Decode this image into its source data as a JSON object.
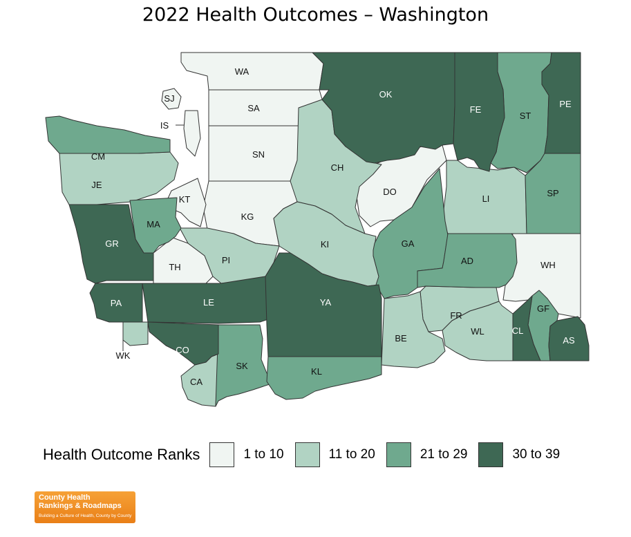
{
  "title": "2022 Health Outcomes – Washington",
  "colors": {
    "bin1": "#f0f5f2",
    "bin2": "#b1d3c3",
    "bin3": "#6fa98e",
    "bin4": "#3e6854",
    "border": "#333333"
  },
  "legend": {
    "title": "Health Outcome Ranks",
    "bins": [
      "1 to 10",
      "11 to 20",
      "21 to 29",
      "30 to 39"
    ]
  },
  "counties": [
    {
      "label": "WA",
      "rank_bin": 1
    },
    {
      "label": "SJ",
      "rank_bin": 1
    },
    {
      "label": "IS",
      "rank_bin": 1
    },
    {
      "label": "SA",
      "rank_bin": 1
    },
    {
      "label": "SN",
      "rank_bin": 1
    },
    {
      "label": "KG",
      "rank_bin": 1
    },
    {
      "label": "KT",
      "rank_bin": 1
    },
    {
      "label": "TH",
      "rank_bin": 1
    },
    {
      "label": "DO",
      "rank_bin": 1
    },
    {
      "label": "WH",
      "rank_bin": 1
    },
    {
      "label": "JE",
      "rank_bin": 2
    },
    {
      "label": "CH",
      "rank_bin": 2
    },
    {
      "label": "PI",
      "rank_bin": 2
    },
    {
      "label": "KI",
      "rank_bin": 2
    },
    {
      "label": "LI",
      "rank_bin": 2
    },
    {
      "label": "FR",
      "rank_bin": 2
    },
    {
      "label": "WL",
      "rank_bin": 2
    },
    {
      "label": "BE",
      "rank_bin": 2
    },
    {
      "label": "CA",
      "rank_bin": 2
    },
    {
      "label": "WK",
      "rank_bin": 2
    },
    {
      "label": "CM",
      "rank_bin": 3
    },
    {
      "label": "MA",
      "rank_bin": 3
    },
    {
      "label": "GA",
      "rank_bin": 3
    },
    {
      "label": "AD",
      "rank_bin": 3
    },
    {
      "label": "ST",
      "rank_bin": 3
    },
    {
      "label": "SP",
      "rank_bin": 3
    },
    {
      "label": "GF",
      "rank_bin": 3
    },
    {
      "label": "SK",
      "rank_bin": 3
    },
    {
      "label": "KL",
      "rank_bin": 3
    },
    {
      "label": "OK",
      "rank_bin": 4
    },
    {
      "label": "FE",
      "rank_bin": 4
    },
    {
      "label": "PE",
      "rank_bin": 4
    },
    {
      "label": "GR",
      "rank_bin": 4
    },
    {
      "label": "PA",
      "rank_bin": 4
    },
    {
      "label": "LE",
      "rank_bin": 4
    },
    {
      "label": "YA",
      "rank_bin": 4
    },
    {
      "label": "CO",
      "rank_bin": 4
    },
    {
      "label": "CL",
      "rank_bin": 4
    },
    {
      "label": "AS",
      "rank_bin": 4
    }
  ],
  "logo": {
    "line1": "County Health",
    "line2": "Rankings & Roadmaps",
    "tagline": "Building a Culture of Health, County by County"
  }
}
